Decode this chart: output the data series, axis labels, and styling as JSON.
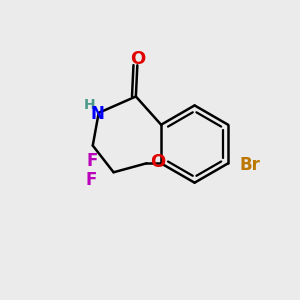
{
  "background_color": "#ebebeb",
  "bond_color": "#000000",
  "bond_width": 1.8,
  "atom_colors": {
    "O": "#e00000",
    "N": "#0000ff",
    "F": "#bb00bb",
    "Br": "#bb7700",
    "H": "#4a9a8a",
    "C": "#000000"
  },
  "font_size": 12,
  "font_size_small": 10
}
